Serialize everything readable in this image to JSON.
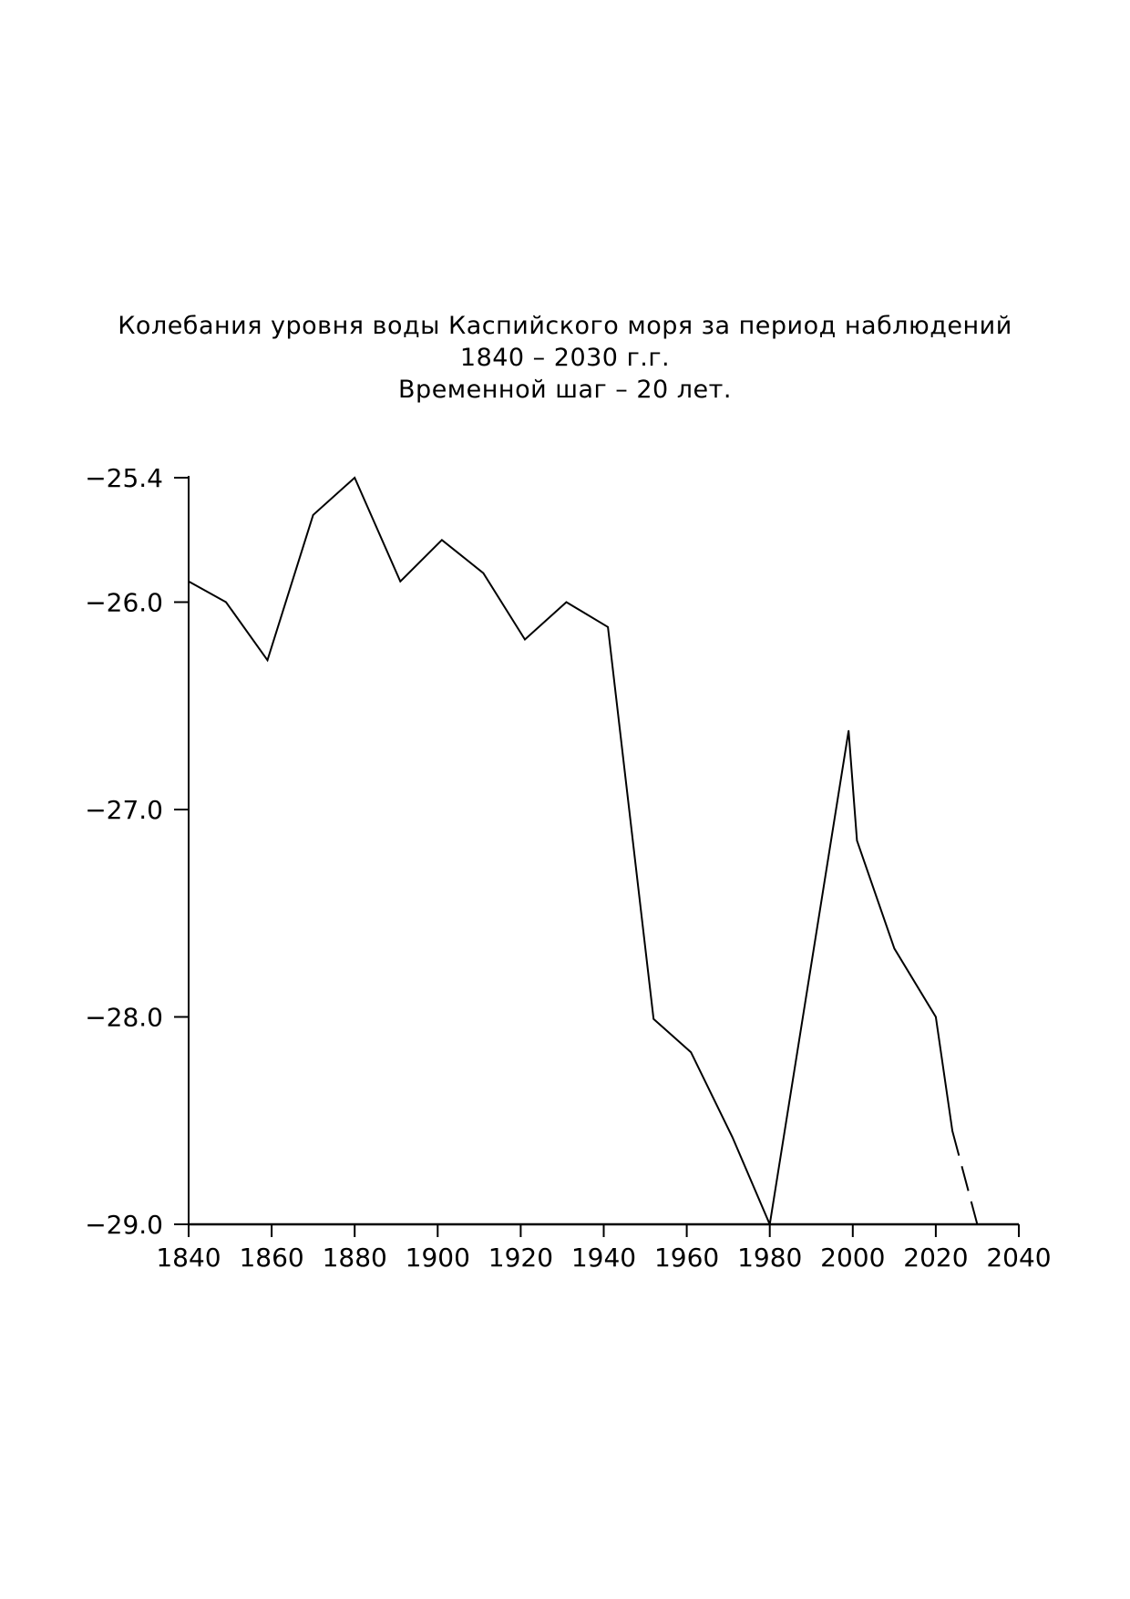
{
  "chart_data": {
    "type": "line",
    "title": "Колебания уровня воды Каспийского моря за период наблюдений",
    "subtitle": "1840 – 2030 г.г.",
    "subtitle2": "Временной шаг – 20 лет.",
    "xlabel": "",
    "ylabel": "",
    "xlim": [
      1840,
      2040
    ],
    "ylim": [
      -29.0,
      -25.4
    ],
    "x_ticks": [
      "1840",
      "1860",
      "1880",
      "1900",
      "1920",
      "1940",
      "1960",
      "1980",
      "2000",
      "2020",
      "2040"
    ],
    "y_ticks": [
      {
        "value": -25.4,
        "label": "−25.4"
      },
      {
        "value": -26.0,
        "label": "−26.0"
      },
      {
        "value": -27.0,
        "label": "−27.0"
      },
      {
        "value": -28.0,
        "label": "−28.0"
      },
      {
        "value": -29.0,
        "label": "−29.0"
      }
    ],
    "grid": false,
    "series": [
      {
        "style": "solid",
        "points": [
          [
            1840,
            -25.9
          ],
          [
            1849,
            -26.0
          ],
          [
            1859,
            -26.28
          ],
          [
            1870,
            -25.58
          ],
          [
            1880,
            -25.4
          ],
          [
            1891,
            -25.9
          ],
          [
            1901,
            -25.7
          ],
          [
            1911,
            -25.86
          ],
          [
            1921,
            -26.18
          ],
          [
            1931,
            -26.0
          ],
          [
            1941,
            -26.12
          ],
          [
            1952,
            -28.01
          ],
          [
            1961,
            -28.17
          ],
          [
            1971,
            -28.58
          ],
          [
            1980,
            -29.0
          ],
          [
            1999,
            -26.62
          ],
          [
            2001,
            -27.15
          ],
          [
            2010,
            -27.67
          ],
          [
            2020,
            -28.0
          ],
          [
            2024,
            -28.55
          ]
        ]
      },
      {
        "style": "dashed",
        "points": [
          [
            2024,
            -28.55
          ],
          [
            2030,
            -29.0
          ]
        ]
      }
    ]
  }
}
